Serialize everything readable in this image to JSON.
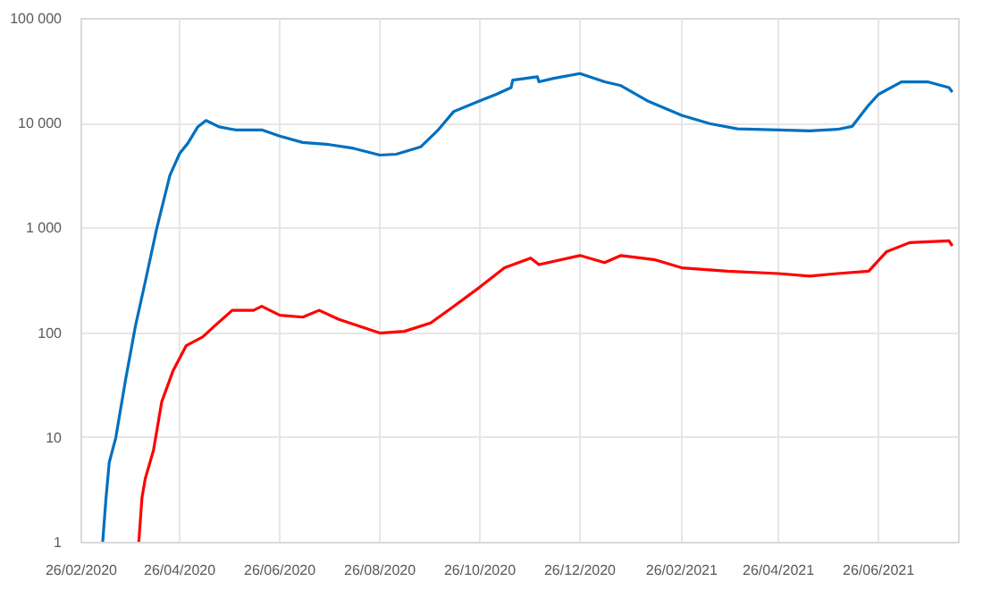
{
  "chart_data": {
    "type": "line",
    "log": "y",
    "grid": true,
    "marker": "none",
    "line_style": "solid",
    "xlim": [
      "2020-02-26",
      "2021-08-14"
    ],
    "xticks": [
      {
        "value": "2020-02-26",
        "label": "26/02/2020"
      },
      {
        "value": "2020-04-26",
        "label": "26/04/2020"
      },
      {
        "value": "2020-06-26",
        "label": "26/06/2020"
      },
      {
        "value": "2020-08-26",
        "label": "26/08/2020"
      },
      {
        "value": "2020-10-26",
        "label": "26/10/2020"
      },
      {
        "value": "2020-12-26",
        "label": "26/12/2020"
      },
      {
        "value": "2021-02-26",
        "label": "26/02/2021"
      },
      {
        "value": "2021-04-26",
        "label": "26/04/2021"
      },
      {
        "value": "2021-06-26",
        "label": "26/06/2021"
      }
    ],
    "ylim": [
      1,
      100000
    ],
    "yticks": [
      1,
      10,
      100,
      {
        "value": 1000,
        "label": "1 000"
      },
      {
        "value": 10000,
        "label": "10 000"
      },
      {
        "value": 100000,
        "label": "100 000"
      }
    ],
    "series": [
      {
        "color": "#0070c0",
        "x": [
          "2020-03-10",
          "2020-03-12",
          "2020-03-14",
          "2020-03-18",
          "2020-03-24",
          "2020-03-30",
          "2020-04-05",
          "2020-04-12",
          "2020-04-20",
          "2020-04-26",
          "2020-05-01",
          "2020-05-07",
          "2020-05-12",
          "2020-05-20",
          "2020-05-30",
          "2020-06-15",
          "2020-06-26",
          "2020-07-10",
          "2020-07-26",
          "2020-08-10",
          "2020-08-26",
          "2020-09-05",
          "2020-09-20",
          "2020-09-30",
          "2020-10-10",
          "2020-10-26",
          "2020-11-05",
          "2020-11-14",
          "2020-11-15",
          "2020-11-30",
          "2020-12-01",
          "2020-12-10",
          "2020-12-26",
          "2021-01-10",
          "2021-01-20",
          "2021-02-05",
          "2021-02-26",
          "2021-03-15",
          "2021-04-01",
          "2021-04-26",
          "2021-05-15",
          "2021-06-01",
          "2021-06-10",
          "2021-06-20",
          "2021-06-26",
          "2021-07-10",
          "2021-07-26",
          "2021-08-08",
          "2021-08-10"
        ],
        "values": [
          1,
          2.6,
          5.8,
          10,
          36,
          117,
          310,
          1000,
          3200,
          5200,
          6500,
          9300,
          10700,
          9300,
          8700,
          8700,
          7600,
          6600,
          6300,
          5800,
          5000,
          5100,
          6000,
          8500,
          13000,
          16500,
          19000,
          22000,
          26000,
          28000,
          25000,
          27000,
          30000,
          25000,
          23000,
          16500,
          12000,
          10000,
          8900,
          8700,
          8500,
          8800,
          9400,
          15000,
          19000,
          25000,
          25000,
          22000,
          20000
        ]
      },
      {
        "color": "#ff0000",
        "x": [
          "2020-04-01",
          "2020-04-03",
          "2020-04-05",
          "2020-04-10",
          "2020-04-15",
          "2020-04-22",
          "2020-04-30",
          "2020-05-10",
          "2020-05-18",
          "2020-05-28",
          "2020-06-10",
          "2020-06-15",
          "2020-06-26",
          "2020-07-10",
          "2020-07-20",
          "2020-08-01",
          "2020-08-26",
          "2020-09-10",
          "2020-09-26",
          "2020-10-10",
          "2020-10-26",
          "2020-11-10",
          "2020-11-26",
          "2020-12-01",
          "2020-12-26",
          "2021-01-10",
          "2021-01-20",
          "2021-02-10",
          "2021-02-26",
          "2021-03-26",
          "2021-04-26",
          "2021-05-15",
          "2021-06-01",
          "2021-06-20",
          "2021-07-01",
          "2021-07-15",
          "2021-08-08",
          "2021-08-10"
        ],
        "values": [
          1,
          2.7,
          4.1,
          7.6,
          22,
          44,
          76,
          92,
          120,
          165,
          165,
          180,
          148,
          142,
          165,
          135,
          100,
          104,
          125,
          180,
          275,
          420,
          520,
          450,
          550,
          470,
          550,
          500,
          420,
          390,
          370,
          350,
          370,
          390,
          600,
          730,
          760,
          680
        ]
      }
    ]
  }
}
